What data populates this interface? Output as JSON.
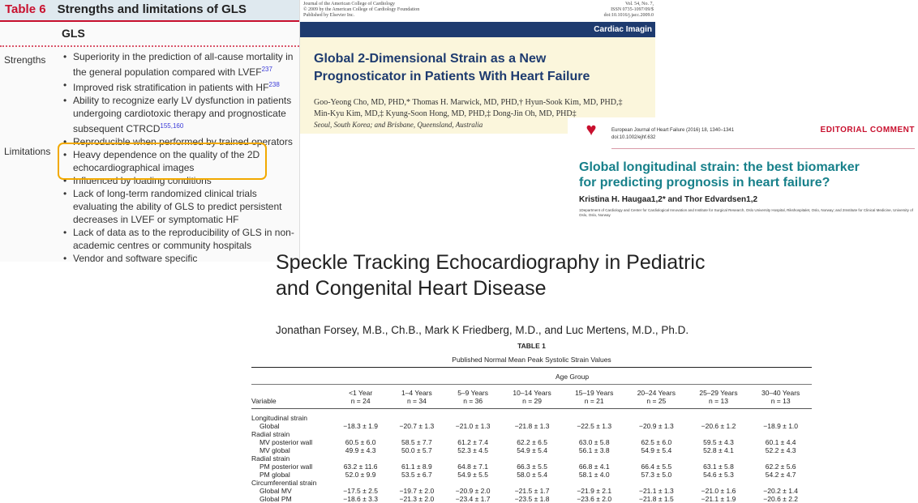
{
  "panel_table6": {
    "table_no": "Table 6",
    "title": "Strengths and limitations of GLS",
    "column": "GLS",
    "strengths_label": "Strengths",
    "limitations_label": "Limitations",
    "strengths": [
      {
        "text": "Superiority in the prediction of all-cause mortality in the general population compared with LVEF",
        "ref": "237"
      },
      {
        "text": "Improved risk stratification in patients with HF",
        "ref": "238"
      },
      {
        "text": "Ability to recognize early LV dysfunction in patients undergoing cardiotoxic therapy and prognosticate subsequent CTRCD",
        "ref": "155,160"
      },
      {
        "text": "Reproducible when performed by trained operators",
        "ref": ""
      }
    ],
    "limitations": [
      "Heavy dependence on the quality of the 2D echocardiographical images",
      "Influenced by loading conditions",
      "Lack of long-term randomized clinical trials evaluating the ability of GLS to predict persistent decreases in LVEF or symptomatic HF",
      "Lack of data as to the reproducibility of GLS in non-academic centres or community hospitals",
      "Vendor and software specific"
    ],
    "highlight_color": "#f2a900"
  },
  "panel_jacc": {
    "journal_lines": [
      "Journal of the American College of Cardiology",
      "© 2009 by the American College of Cardiology Foundation",
      "Published by Elsevier Inc."
    ],
    "meta_lines": [
      "Vol. 54, No. 7,",
      "ISSN 0735-1097/09/$",
      "doi:10.1016/j.jacc.2009.0"
    ],
    "section": "Cardiac Imagin",
    "title_line1": "Global 2-Dimensional Strain as a New",
    "title_line2": "Prognosticator in Patients With Heart Failure",
    "authors_line1": "Goo-Yeong Cho, MD, PHD,* Thomas H. Marwick, MD, PHD,† Hyun-Sook Kim, MD, PHD,‡",
    "authors_line2": "Min-Kyu Kim, MD,‡ Kyung-Soon Hong, MD, PHD,‡ Dong-Jin Oh, MD, PHD‡",
    "location": "Seoul, South Korea; and Brisbane, Queensland, Australia"
  },
  "panel_ejhf": {
    "logo_text": "EUROPEAN SOCIETY OF CARDIOLOGY",
    "journal": "European Journal of Heart Failure (2016) 18, 1340–1341",
    "doi": "doi:10.1002/ejhf.632",
    "type": "EDITORIAL COMMENT",
    "title_line1": "Global longitudinal strain: the best biomarker",
    "title_line2": "for predicting prognosis in heart failure?",
    "authors": "Kristina H. Haugaa1,2* and Thor Edvardsen1,2",
    "affiliation": "1Department of Cardiology and Center for Cardiological Innovation and Institute for Surgical Research, Oslo University Hospital, Rikshospitalet, Oslo, Norway; and 2Institute for Clinical Medicine, University of Oslo, Oslo, Norway"
  },
  "panel_speckle": {
    "title_line1": "Speckle Tracking Echocardiography in Pediatric",
    "title_line2": "and Congenital Heart Disease",
    "authors": "Jonathan Forsey, M.B., Ch.B., Mark K Friedberg, M.D., and Luc Mertens, M.D., Ph.D.",
    "table": {
      "label": "TABLE 1",
      "caption": "Published Normal Mean Peak Systolic Strain Values",
      "group_header": "Age Group",
      "variable_header": "Variable",
      "columns": [
        {
          "age": "<1 Year",
          "n": "n = 24"
        },
        {
          "age": "1–4 Years",
          "n": "n = 34"
        },
        {
          "age": "5–9 Years",
          "n": "n = 36"
        },
        {
          "age": "10–14 Years",
          "n": "n = 29"
        },
        {
          "age": "15–19 Years",
          "n": "n = 21"
        },
        {
          "age": "20–24 Years",
          "n": "n = 25"
        },
        {
          "age": "25–29 Years",
          "n": "n = 13"
        },
        {
          "age": "30–40 Years",
          "n": "n = 13"
        }
      ],
      "sections": [
        {
          "name": "Longitudinal strain",
          "rows": [
            {
              "label": "Global",
              "values": [
                "−18.3 ± 1.9",
                "−20.7 ± 1.3",
                "−21.0 ± 1.3",
                "−21.8 ± 1.3",
                "−22.5 ± 1.3",
                "−20.9 ± 1.3",
                "−20.6 ± 1.2",
                "−18.9 ± 1.0"
              ]
            }
          ]
        },
        {
          "name": "Radial strain",
          "rows": [
            {
              "label": "MV posterior wall",
              "values": [
                "60.5 ± 6.0",
                "58.5 ± 7.7",
                "61.2 ± 7.4",
                "62.2 ± 6.5",
                "63.0 ± 5.8",
                "62.5 ± 6.0",
                "59.5 ± 4.3",
                "60.1 ± 4.4"
              ]
            },
            {
              "label": "MV global",
              "values": [
                "49.9 ± 4.3",
                "50.0 ± 5.7",
                "52.3 ± 4.5",
                "54.9 ± 5.4",
                "56.1 ± 3.8",
                "54.9 ± 5.4",
                "52.8 ± 4.1",
                "52.2 ± 4.3"
              ]
            }
          ]
        },
        {
          "name": "Radial strain",
          "rows": [
            {
              "label": "PM posterior wall",
              "values": [
                "63.2 ± 11.6",
                "61.1 ± 8.9",
                "64.8 ± 7.1",
                "66.3 ± 5.5",
                "66.8 ± 4.1",
                "66.4 ± 5.5",
                "63.1 ± 5.8",
                "62.2 ± 5.6"
              ]
            },
            {
              "label": "PM global",
              "values": [
                "52.0 ± 9.9",
                "53.5 ± 6.7",
                "54.9 ± 5.5",
                "58.0 ± 5.4",
                "58.1 ± 4.0",
                "57.3 ± 5.0",
                "54.6 ± 5.3",
                "54.2 ± 4.7"
              ]
            }
          ]
        },
        {
          "name": "Circumferential strain",
          "rows": [
            {
              "label": "Global MV",
              "values": [
                "−17.5 ± 2.5",
                "−19.7 ± 2.0",
                "−20.9 ± 2.0",
                "−21.5 ± 1.7",
                "−21.9 ± 2.1",
                "−21.1 ± 1.3",
                "−21.0 ± 1.6",
                "−20.2 ± 1.4"
              ]
            },
            {
              "label": "Global PM",
              "values": [
                "−18.6 ± 3.3",
                "−21.3 ± 2.0",
                "−23.4 ± 1.7",
                "−23.5 ± 1.8",
                "−23.6 ± 2.0",
                "−21.8 ± 1.5",
                "−21.1 ± 1.9",
                "−20.6 ± 2.2"
              ]
            }
          ]
        }
      ]
    }
  }
}
